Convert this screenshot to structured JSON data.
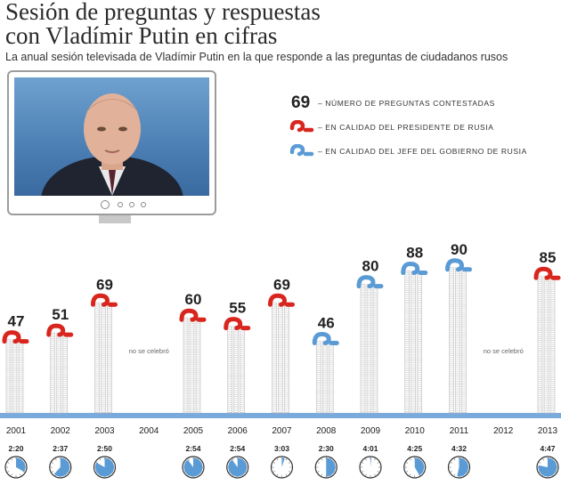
{
  "header": {
    "title_line1": "Sesión de preguntas y respuestas",
    "title_line2": "con Vladímir Putin en cifras",
    "subtitle": "La anual sesión televisada de Vladímir Putin en la que responde a las preguntas de ciudadanos rusos"
  },
  "legend": {
    "number_sample": "69",
    "number_text": "– NÚMERO DE PREGUNTAS CONTESTADAS",
    "president_text": "– EN CALIDAD DEL PRESIDENTE DE RUSIA",
    "premier_text": "– EN CALIDAD DEL JEFE DEL GOBIERNO DE RUSIA"
  },
  "colors": {
    "president": "#d8261e",
    "premier": "#5b9bd5",
    "stack": "#bdbdbd",
    "baseline": "#7aa9dc",
    "clock_fill": "#5b9bd5"
  },
  "chart_data": {
    "type": "bar",
    "title": "Sesión de preguntas y respuestas con Vladímir Putin en cifras",
    "ylabel": "",
    "ylim": [
      0,
      100
    ],
    "categories": [
      "2001",
      "2002",
      "2003",
      "2004",
      "2005",
      "2006",
      "2007",
      "2008",
      "2009",
      "2010",
      "2011",
      "2012",
      "2013"
    ],
    "series": [
      {
        "name": "– NÚMERO DE PREGUNTAS CONTESTADAS",
        "values": [
          47,
          51,
          69,
          null,
          60,
          55,
          69,
          46,
          80,
          88,
          90,
          null,
          85
        ]
      }
    ],
    "role": [
      "president",
      "president",
      "president",
      null,
      "president",
      "president",
      "president",
      "premier",
      "premier",
      "premier",
      "premier",
      null,
      "president"
    ],
    "not_held_label": "no se celebró",
    "durations": [
      "2:20",
      "2:37",
      "2:50",
      "",
      "2:54",
      "2:54",
      "3:03",
      "2:30",
      "4:01",
      "4:25",
      "4:32",
      "",
      "4:47"
    ],
    "duration_minutes": [
      140,
      157,
      170,
      null,
      174,
      174,
      183,
      150,
      241,
      265,
      272,
      null,
      287
    ]
  }
}
